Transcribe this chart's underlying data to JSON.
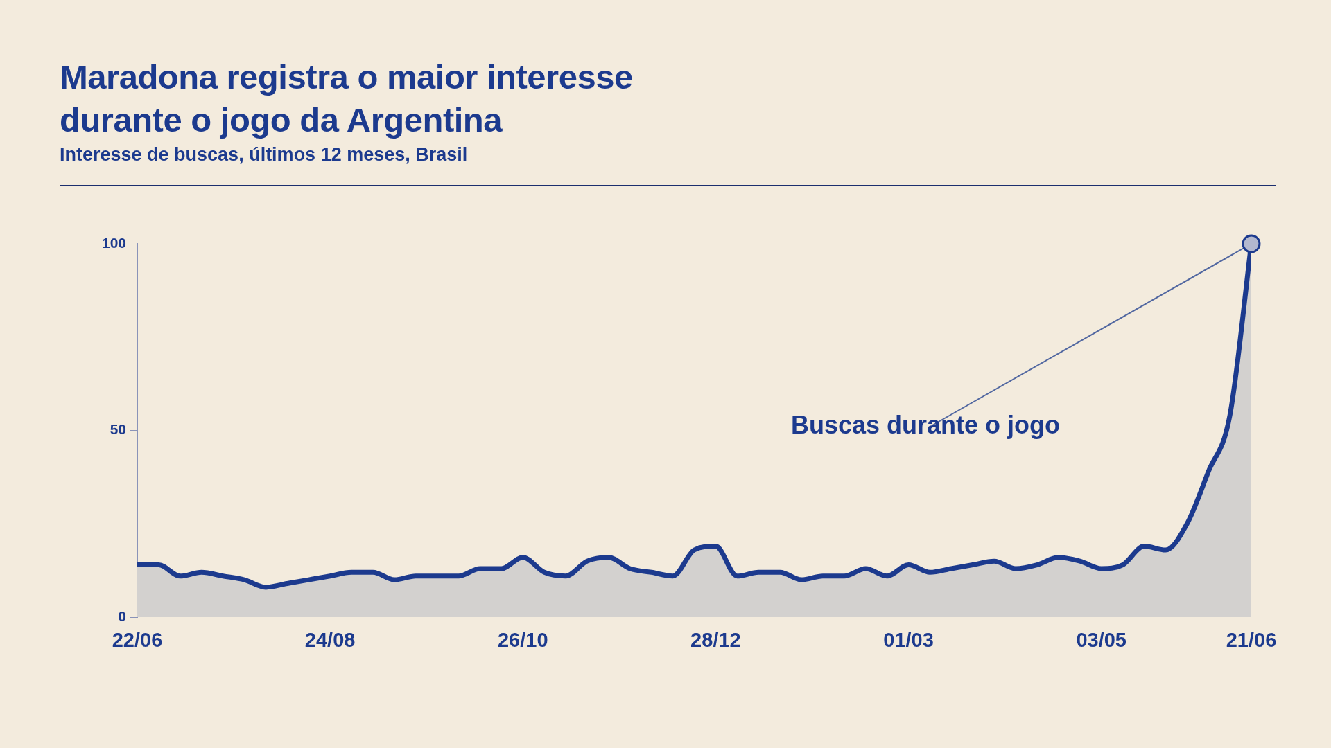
{
  "chart_data": {
    "type": "area",
    "title": "Maradona registra o maior interesse durante o jogo da Argentina",
    "subtitle": "Interesse de buscas, últimos 12 meses, Brasil",
    "categories": [
      "22/06",
      null,
      null,
      null,
      null,
      null,
      null,
      null,
      null,
      "24/08",
      null,
      null,
      null,
      null,
      null,
      null,
      null,
      null,
      "26/10",
      null,
      null,
      null,
      null,
      null,
      null,
      null,
      null,
      "28/12",
      null,
      null,
      null,
      null,
      null,
      null,
      null,
      null,
      "01/03",
      null,
      null,
      null,
      null,
      null,
      null,
      null,
      null,
      "03/05",
      null,
      null,
      null,
      null,
      null,
      null,
      "21/06"
    ],
    "series": [
      {
        "color": "#1c3a8e",
        "values": [
          14,
          14,
          11,
          12,
          11,
          10,
          8,
          9,
          10,
          11,
          12,
          12,
          10,
          11,
          11,
          11,
          13,
          13,
          16,
          12,
          11,
          15,
          16,
          13,
          12,
          11,
          18,
          19,
          11,
          12,
          12,
          10,
          11,
          11,
          13,
          11,
          14,
          12,
          13,
          14,
          15,
          13,
          14,
          16,
          15,
          13,
          14,
          19,
          18,
          25,
          39,
          54,
          100
        ]
      }
    ],
    "ylim": [
      0,
      100
    ],
    "yticks": [
      0,
      50,
      100
    ],
    "grid": false,
    "legend": false,
    "marker": "none",
    "line_style": "solid",
    "annotations": [
      {
        "text": "Buscas durante o jogo",
        "x": "21/06",
        "y": 100
      }
    ]
  }
}
